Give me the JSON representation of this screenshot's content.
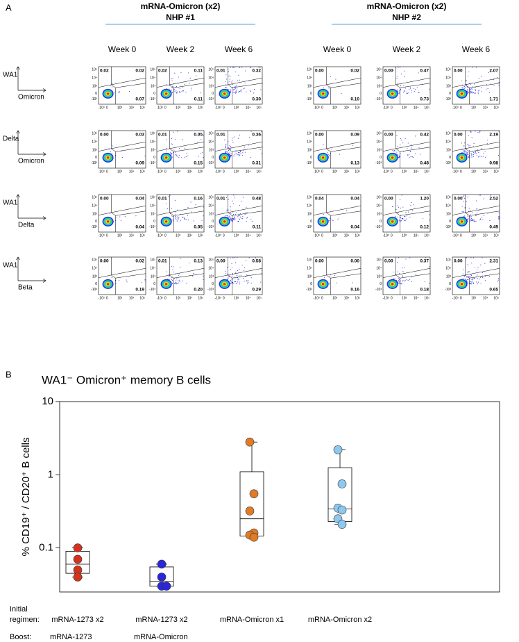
{
  "panel_a": {
    "label": "A",
    "groups": [
      {
        "title": "mRNA-Omicron (x2)",
        "subtitle": "NHP #1",
        "weeks": [
          "Week 0",
          "Week 2",
          "Week 6"
        ],
        "plots": [
          [
            [
              "0.02",
              "0.02",
              "0.07"
            ],
            [
              "0.02",
              "0.11",
              "0.11"
            ],
            [
              "0.01",
              "0.32",
              "0.30"
            ]
          ],
          [
            [
              "0.00",
              "0.03",
              "0.09"
            ],
            [
              "0.01",
              "0.05",
              "0.15"
            ],
            [
              "0.01",
              "0.36",
              "0.31"
            ]
          ],
          [
            [
              "0.00",
              "0.04",
              "0.04"
            ],
            [
              "0.01",
              "0.16",
              "0.05"
            ],
            [
              "0.01",
              "0.48",
              "0.11"
            ]
          ],
          [
            [
              "0.00",
              "0.02",
              "0.19"
            ],
            [
              "0.01",
              "0.13",
              "0.20"
            ],
            [
              "0.00",
              "0.58",
              "0.29"
            ]
          ]
        ]
      },
      {
        "title": "mRNA-Omicron (x2)",
        "subtitle": "NHP #2",
        "weeks": [
          "Week 0",
          "Week 2",
          "Week 6"
        ],
        "plots": [
          [
            [
              "0.00",
              "0.02",
              "0.10"
            ],
            [
              "0.00",
              "0.47",
              "0.73"
            ],
            [
              "0.00",
              "2.07",
              "1.71"
            ]
          ],
          [
            [
              "0.00",
              "0.09",
              "0.13"
            ],
            [
              "0.00",
              "0.42",
              "0.48"
            ],
            [
              "0.00",
              "2.19",
              "0.98"
            ]
          ],
          [
            [
              "0.04",
              "0.04",
              "0.04"
            ],
            [
              "0.00",
              "1.20",
              "0.12"
            ],
            [
              "0.00",
              "2.52",
              "0.49"
            ]
          ],
          [
            [
              "0.00",
              "0.00",
              "0.16"
            ],
            [
              "0.00",
              "0.37",
              "0.18"
            ],
            [
              "0.00",
              "2.31",
              "0.65"
            ]
          ]
        ]
      }
    ],
    "rows": [
      {
        "y": "WA1",
        "x": "Omicron"
      },
      {
        "y": "Delta",
        "x": "Omicron"
      },
      {
        "y": "WA1",
        "x": "Delta"
      },
      {
        "y": "WA1",
        "x": "Beta"
      }
    ],
    "y_ticks": [
      "10⁵",
      "10⁴",
      "10³",
      "0",
      "-10³"
    ],
    "x_ticks": [
      "-10³",
      "0",
      "10³",
      "10⁴",
      "10⁵"
    ]
  },
  "chart_data": {
    "type": "box",
    "label": "B",
    "title": "WA1⁻ Omicron⁺ memory B cells",
    "ylabel": "% CD19⁺ / CD20⁺ B cells",
    "log": true,
    "ylim": [
      0.025,
      10
    ],
    "yticks": [
      0.1,
      1,
      10
    ],
    "regimen_label": [
      "Initial",
      "regimen:"
    ],
    "boost_label": "Boost:",
    "categories": [
      "mRNA-1273 x2",
      "mRNA-1273 x2",
      "mRNA-Omicron x1",
      "mRNA-Omicron x2"
    ],
    "boost": [
      "mRNA-1273",
      "mRNA-Omicron",
      null,
      null
    ],
    "groups": [
      {
        "color": "#d4321c",
        "values": [
          0.1,
          0.07,
          0.05,
          0.04
        ],
        "box": {
          "min": 0.04,
          "q1": 0.045,
          "median": 0.06,
          "q3": 0.09,
          "max": 0.1
        }
      },
      {
        "color": "#2a27d8",
        "values": [
          0.06,
          0.04,
          0.03,
          0.03
        ],
        "box": {
          "min": 0.03,
          "q1": 0.03,
          "median": 0.035,
          "q3": 0.055,
          "max": 0.06
        }
      },
      {
        "color": "#e07b27",
        "values": [
          2.8,
          0.55,
          0.32,
          0.16,
          0.15,
          0.14
        ],
        "box": {
          "min": 0.14,
          "q1": 0.145,
          "median": 0.25,
          "q3": 1.1,
          "max": 2.8
        }
      },
      {
        "color": "#8ec8ee",
        "values": [
          2.2,
          0.75,
          0.35,
          0.33,
          0.25,
          0.21
        ],
        "box": {
          "min": 0.21,
          "q1": 0.23,
          "median": 0.34,
          "q3": 1.25,
          "max": 2.2
        }
      }
    ]
  }
}
